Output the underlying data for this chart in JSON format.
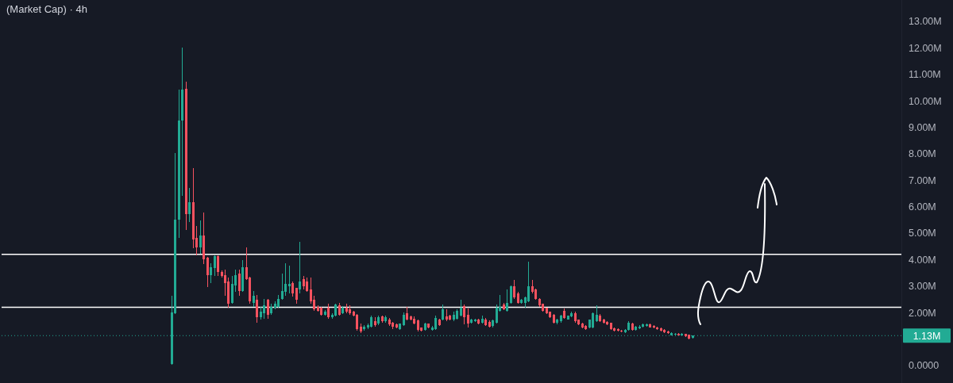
{
  "chart_data": {
    "type": "candlestick",
    "title": "(Market Cap) · 4h",
    "categories": [
      null,
      null,
      null,
      null,
      null,
      null,
      null,
      null,
      null,
      null,
      null,
      null,
      null,
      null,
      null,
      null,
      null,
      null,
      null,
      null,
      null,
      null,
      null,
      null,
      null,
      null,
      null,
      null,
      null,
      null,
      null,
      null,
      null,
      null,
      null,
      null,
      null,
      null,
      null,
      null,
      null,
      null,
      null,
      null,
      null,
      null,
      null,
      null,
      null,
      null,
      null,
      null,
      null,
      null,
      null,
      null,
      null,
      null,
      null,
      null,
      null,
      null,
      null,
      null,
      null,
      null,
      null,
      null,
      null,
      null,
      null,
      null,
      null,
      null,
      null,
      null,
      null,
      null,
      null,
      null,
      null,
      null,
      null,
      null,
      null,
      null,
      null,
      null,
      null,
      null,
      null,
      null,
      null,
      null,
      null,
      null,
      null,
      null,
      null,
      null,
      null,
      null,
      null,
      null,
      null,
      null,
      null,
      null,
      null,
      null,
      null,
      null,
      null,
      null,
      null,
      null,
      null,
      null,
      null,
      null,
      null,
      null,
      null,
      null,
      null,
      null,
      null,
      null,
      null,
      null,
      null,
      null,
      null,
      null,
      null,
      null,
      null,
      null,
      null,
      null,
      null,
      null,
      null,
      null,
      null,
      null,
      null,
      null,
      null,
      null,
      null,
      null,
      null,
      null,
      null,
      null,
      null,
      null,
      null,
      null,
      null,
      null,
      null,
      null,
      null,
      null,
      null,
      null,
      null,
      null,
      null,
      null,
      null,
      null,
      null,
      null,
      null,
      null,
      null,
      null,
      null,
      null,
      null,
      null,
      null,
      null,
      null,
      null,
      null,
      null,
      null,
      null,
      null,
      null,
      null,
      null,
      null,
      null,
      null,
      null,
      null,
      null,
      null,
      null,
      null,
      null,
      null,
      null,
      null,
      null,
      null,
      null,
      null,
      null,
      null,
      null,
      null,
      null,
      null,
      null,
      null,
      null,
      null,
      null,
      null,
      null,
      null,
      null,
      null,
      null,
      null,
      null,
      null,
      null,
      null,
      null,
      null,
      null,
      null,
      null,
      null,
      null,
      null,
      null,
      null,
      null,
      null,
      null,
      null,
      null,
      null,
      null
    ],
    "ohlc": [
      null,
      null,
      null,
      null,
      null,
      null,
      null,
      null,
      null,
      null,
      null,
      null,
      null,
      null,
      null,
      null,
      null,
      null,
      null,
      null,
      null,
      null,
      null,
      null,
      null,
      null,
      null,
      null,
      null,
      null,
      null,
      null,
      null,
      null,
      null,
      null,
      null,
      null,
      null,
      null,
      null,
      null,
      null,
      null,
      null,
      null,
      null,
      [
        0.05,
        2.64,
        0.02,
        2.0
      ],
      [
        1.98,
        8.03,
        1.95,
        5.52
      ],
      [
        5.52,
        10.43,
        4.82,
        9.27
      ],
      [
        9.27,
        12.0,
        6.4,
        10.43
      ],
      [
        10.45,
        10.72,
        5.12,
        5.72
      ],
      [
        5.72,
        6.72,
        5.42,
        6.17
      ],
      [
        6.17,
        7.47,
        4.43,
        4.77
      ],
      [
        4.82,
        5.27,
        4.17,
        4.47
      ],
      [
        4.47,
        5.48,
        4.22,
        4.92
      ],
      [
        4.92,
        5.78,
        3.83,
        4.02
      ],
      [
        4.07,
        4.1,
        2.97,
        3.42
      ],
      [
        3.42,
        3.87,
        3.12,
        3.72
      ],
      [
        3.68,
        4.15,
        3.38,
        4.12
      ],
      [
        4.12,
        4.15,
        3.38,
        3.53
      ],
      [
        3.53,
        3.6,
        3.33,
        3.38
      ],
      [
        3.42,
        3.62,
        2.64,
        3.12
      ],
      [
        3.18,
        3.33,
        2.18,
        2.33
      ],
      [
        2.38,
        3.38,
        2.33,
        3.08
      ],
      [
        3.03,
        3.62,
        2.78,
        3.42
      ],
      [
        3.48,
        3.62,
        2.64,
        2.83
      ],
      [
        2.83,
        3.98,
        2.78,
        3.72
      ],
      [
        3.72,
        4.47,
        3.23,
        3.27
      ],
      [
        3.33,
        3.35,
        2.33,
        2.43
      ],
      [
        2.38,
        2.83,
        2.23,
        2.63
      ],
      [
        2.48,
        2.68,
        1.63,
        1.83
      ],
      [
        1.83,
        2.23,
        1.73,
        2.03
      ],
      [
        1.98,
        2.53,
        1.78,
        2.28
      ],
      [
        2.48,
        2.53,
        1.78,
        1.93
      ],
      [
        1.98,
        2.33,
        1.93,
        2.23
      ],
      [
        2.18,
        2.43,
        2.13,
        2.33
      ],
      [
        2.23,
        2.68,
        2.2,
        2.53
      ],
      [
        2.53,
        3.48,
        2.5,
        2.83
      ],
      [
        2.78,
        3.87,
        2.63,
        3.08
      ],
      [
        3.0,
        3.78,
        2.73,
        3.08
      ],
      [
        3.12,
        3.17,
        2.6,
        2.73
      ],
      [
        2.93,
        2.95,
        2.33,
        2.48
      ],
      [
        2.88,
        4.67,
        2.73,
        3.18
      ],
      [
        3.27,
        3.37,
        2.88,
        2.98
      ],
      [
        3.18,
        3.33,
        2.78,
        2.83
      ],
      [
        2.88,
        3.33,
        2.33,
        2.43
      ],
      [
        2.48,
        2.63,
        2.08,
        2.13
      ],
      [
        2.23,
        2.28,
        2.03,
        2.08
      ],
      [
        2.18,
        2.23,
        1.88,
        1.93
      ],
      [
        1.93,
        2.1,
        1.9,
        2.05
      ],
      [
        2.18,
        2.33,
        1.78,
        1.83
      ],
      [
        1.83,
        1.98,
        1.78,
        1.93
      ],
      [
        1.88,
        2.35,
        1.85,
        2.3
      ],
      [
        2.28,
        2.38,
        1.9,
        1.93
      ],
      [
        1.98,
        2.25,
        1.95,
        2.2
      ],
      [
        2.2,
        2.35,
        1.98,
        2.03
      ],
      [
        2.13,
        2.28,
        1.93,
        1.98
      ],
      [
        2.03,
        2.08,
        1.85,
        1.88
      ],
      [
        1.93,
        1.95,
        1.33,
        1.38
      ],
      [
        1.48,
        1.58,
        1.23,
        1.28
      ],
      [
        1.38,
        1.53,
        1.33,
        1.48
      ],
      [
        1.43,
        1.58,
        1.38,
        1.53
      ],
      [
        1.48,
        1.9,
        1.43,
        1.83
      ],
      [
        1.68,
        1.83,
        1.48,
        1.53
      ],
      [
        1.58,
        1.88,
        1.53,
        1.83
      ],
      [
        1.85,
        1.88,
        1.63,
        1.68
      ],
      [
        1.68,
        1.88,
        1.63,
        1.83
      ],
      [
        1.75,
        1.8,
        1.5,
        1.55
      ],
      [
        1.63,
        1.65,
        1.38,
        1.48
      ],
      [
        1.55,
        1.6,
        1.4,
        1.43
      ],
      [
        1.38,
        1.6,
        1.35,
        1.58
      ],
      [
        1.53,
        2.0,
        1.5,
        1.93
      ],
      [
        1.98,
        2.23,
        1.7,
        1.73
      ],
      [
        1.85,
        1.9,
        1.7,
        1.73
      ],
      [
        1.78,
        1.85,
        1.55,
        1.58
      ],
      [
        1.71,
        1.75,
        1.3,
        1.35
      ],
      [
        1.43,
        1.45,
        1.3,
        1.33
      ],
      [
        1.35,
        1.63,
        1.33,
        1.58
      ],
      [
        1.58,
        1.6,
        1.4,
        1.43
      ],
      [
        1.35,
        1.5,
        1.33,
        1.45
      ],
      [
        1.38,
        1.9,
        1.35,
        1.81
      ],
      [
        1.75,
        1.78,
        1.5,
        1.53
      ],
      [
        1.73,
        2.31,
        1.7,
        2.13
      ],
      [
        1.85,
        2.13,
        1.68,
        1.73
      ],
      [
        1.88,
        1.93,
        1.7,
        1.73
      ],
      [
        1.73,
        2.03,
        1.68,
        1.93
      ],
      [
        1.78,
        2.13,
        1.75,
        2.08
      ],
      [
        1.88,
        2.48,
        1.85,
        2.18
      ],
      [
        2.25,
        2.3,
        1.55,
        1.83
      ],
      [
        1.91,
        2.15,
        1.43,
        1.58
      ],
      [
        1.63,
        1.78,
        1.6,
        1.73
      ],
      [
        1.68,
        1.78,
        1.65,
        1.75
      ],
      [
        1.75,
        1.78,
        1.55,
        1.6
      ],
      [
        1.63,
        1.88,
        1.6,
        1.78
      ],
      [
        1.75,
        1.8,
        1.5,
        1.53
      ],
      [
        1.65,
        1.7,
        1.45,
        1.48
      ],
      [
        1.5,
        1.75,
        1.45,
        1.7
      ],
      [
        1.63,
        2.3,
        1.6,
        2.18
      ],
      [
        2.08,
        2.68,
        2.03,
        2.23
      ],
      [
        2.3,
        2.38,
        2.1,
        2.13
      ],
      [
        2.08,
        2.88,
        2.03,
        2.38
      ],
      [
        2.38,
        3.03,
        2.33,
        2.98
      ],
      [
        2.98,
        3.23,
        2.53,
        2.58
      ],
      [
        2.73,
        2.78,
        2.33,
        2.38
      ],
      [
        2.38,
        2.53,
        2.33,
        2.48
      ],
      [
        2.38,
        2.6,
        2.18,
        2.58
      ],
      [
        2.43,
        3.92,
        2.4,
        3.0
      ],
      [
        3.0,
        3.23,
        2.73,
        2.78
      ],
      [
        2.88,
        2.9,
        2.48,
        2.53
      ],
      [
        2.53,
        2.55,
        2.23,
        2.28
      ],
      [
        2.33,
        2.35,
        2.03,
        2.08
      ],
      [
        2.18,
        2.2,
        1.95,
        1.98
      ],
      [
        2.03,
        2.05,
        1.8,
        1.83
      ],
      [
        1.91,
        1.95,
        1.6,
        1.63
      ],
      [
        1.63,
        1.78,
        1.55,
        1.73
      ],
      [
        1.68,
        1.93,
        1.63,
        1.88
      ],
      [
        2.08,
        2.15,
        1.78,
        1.81
      ],
      [
        1.75,
        1.9,
        1.73,
        1.88
      ],
      [
        1.85,
        2.05,
        1.83,
        1.98
      ],
      [
        1.98,
        2.03,
        1.63,
        1.68
      ],
      [
        1.73,
        1.75,
        1.53,
        1.55
      ],
      [
        1.6,
        1.63,
        1.42,
        1.45
      ],
      [
        1.5,
        1.53,
        1.35,
        1.38
      ],
      [
        1.43,
        1.75,
        1.4,
        1.73
      ],
      [
        1.45,
        2.0,
        1.4,
        1.98
      ],
      [
        1.68,
        2.28,
        1.65,
        1.93
      ],
      [
        1.9,
        1.95,
        1.65,
        1.68
      ],
      [
        1.75,
        1.78,
        1.6,
        1.63
      ],
      [
        1.65,
        1.68,
        1.53,
        1.55
      ],
      [
        1.61,
        1.63,
        1.35,
        1.38
      ],
      [
        1.41,
        1.43,
        1.28,
        1.31
      ],
      [
        1.38,
        1.4,
        1.28,
        1.31
      ],
      [
        1.33,
        1.35,
        1.25,
        1.28
      ],
      [
        1.25,
        1.38,
        1.23,
        1.36
      ],
      [
        1.35,
        1.68,
        1.33,
        1.63
      ],
      [
        1.6,
        1.63,
        1.33,
        1.35
      ],
      [
        1.35,
        1.5,
        1.33,
        1.48
      ],
      [
        1.4,
        1.53,
        1.38,
        1.48
      ],
      [
        1.48,
        1.6,
        1.45,
        1.55
      ],
      [
        1.5,
        1.58,
        1.48,
        1.55
      ],
      [
        1.55,
        1.58,
        1.43,
        1.45
      ],
      [
        1.5,
        1.53,
        1.4,
        1.43
      ],
      [
        1.45,
        1.48,
        1.35,
        1.38
      ],
      [
        1.41,
        1.43,
        1.3,
        1.33
      ],
      [
        1.36,
        1.38,
        1.23,
        1.26
      ],
      [
        1.3,
        1.31,
        1.2,
        1.23
      ],
      [
        1.15,
        1.25,
        1.13,
        1.23
      ],
      [
        1.16,
        1.23,
        1.13,
        1.2
      ],
      [
        1.21,
        1.23,
        1.13,
        1.15
      ],
      [
        1.15,
        1.23,
        1.13,
        1.21
      ],
      [
        1.2,
        1.21,
        1.08,
        1.1
      ],
      [
        1.16,
        1.18,
        0.98,
        1.03
      ],
      [
        1.05,
        1.15,
        1.03,
        1.13
      ],
      null,
      null,
      null,
      null,
      null,
      null,
      null,
      null,
      null,
      null,
      null,
      null,
      null,
      null,
      null,
      null,
      null,
      null,
      null,
      null,
      null,
      null,
      null,
      null,
      null,
      null,
      null,
      null,
      null,
      null,
      null,
      null,
      null,
      null,
      null,
      null,
      null,
      null,
      null,
      null,
      null,
      null,
      null,
      null,
      null,
      null,
      null,
      null,
      null,
      null,
      null,
      null,
      null,
      null,
      null,
      null,
      null,
      null
    ],
    "colors": [
      null,
      null,
      null,
      null,
      null,
      null,
      null,
      null,
      null,
      null,
      null,
      null,
      null,
      null,
      null,
      null,
      null,
      null,
      null,
      null,
      null,
      null,
      null,
      null,
      null,
      null,
      null,
      null,
      null,
      null,
      null,
      null,
      null,
      null,
      null,
      null,
      null,
      null,
      null,
      null,
      null,
      null,
      null,
      null,
      null,
      null,
      null,
      "#22ab94",
      "#22ab94",
      "#22ab94",
      "#22ab94",
      "#f7525f",
      "#22ab94",
      "#f7525f",
      "#f7525f",
      "#22ab94",
      "#f7525f",
      "#f7525f",
      "#22ab94",
      "#22ab94",
      "#f7525f",
      "#f7525f",
      "#f7525f",
      "#f7525f",
      "#22ab94",
      "#22ab94",
      "#f7525f",
      "#22ab94",
      "#f7525f",
      "#f7525f",
      "#22ab94",
      "#f7525f",
      "#22ab94",
      "#22ab94",
      "#f7525f",
      "#22ab94",
      "#22ab94",
      "#22ab94",
      "#22ab94",
      "#22ab94",
      "#22ab94",
      "#f7525f",
      "#f7525f",
      "#22ab94",
      "#f7525f",
      "#f7525f",
      "#f7525f",
      "#f7525f",
      "#f7525f",
      "#f7525f",
      "#22ab94",
      "#f7525f",
      "#22ab94",
      "#22ab94",
      "#f7525f",
      "#22ab94",
      "#f7525f",
      "#f7525f",
      "#f7525f",
      "#f7525f",
      "#f7525f",
      "#22ab94",
      "#22ab94",
      "#22ab94",
      "#f7525f",
      "#22ab94",
      "#f7525f",
      "#22ab94",
      "#f7525f",
      "#f7525f",
      "#f7525f",
      "#22ab94",
      "#22ab94",
      "#f7525f",
      "#f7525f",
      "#f7525f",
      "#f7525f",
      "#f7525f",
      "#22ab94",
      "#f7525f",
      "#22ab94",
      "#22ab94",
      "#f7525f",
      "#22ab94",
      "#f7525f",
      "#f7525f",
      "#22ab94",
      "#22ab94",
      "#22ab94",
      "#f7525f",
      "#f7525f",
      "#22ab94",
      "#22ab94",
      "#f7525f",
      "#22ab94",
      "#f7525f",
      "#f7525f",
      "#22ab94",
      "#22ab94",
      "#22ab94",
      "#f7525f",
      "#22ab94",
      "#22ab94",
      "#f7525f",
      "#f7525f",
      "#22ab94",
      "#22ab94",
      "#22ab94",
      "#f7525f",
      "#f7525f",
      "#f7525f",
      "#f7525f",
      "#f7525f",
      "#f7525f",
      "#f7525f",
      "#22ab94",
      "#22ab94",
      "#f7525f",
      "#22ab94",
      "#22ab94",
      "#f7525f",
      "#f7525f",
      "#f7525f",
      "#f7525f",
      "#22ab94",
      "#22ab94",
      "#22ab94",
      "#f7525f",
      "#f7525f",
      "#f7525f",
      "#f7525f",
      "#f7525f",
      "#f7525f",
      "#f7525f",
      "#22ab94",
      "#22ab94",
      "#f7525f",
      "#22ab94",
      "#22ab94",
      "#22ab94",
      "#22ab94",
      "#f7525f",
      "#f7525f",
      "#f7525f",
      "#f7525f",
      "#f7525f",
      "#f7525f",
      "#22ab94",
      "#22ab94",
      "#f7525f",
      "#22ab94",
      "#f7525f",
      "#f7525f",
      "#22ab94",
      null,
      null,
      null,
      null,
      null,
      null,
      null,
      null,
      null,
      null,
      null,
      null,
      null,
      null,
      null,
      null,
      null,
      null,
      null,
      null,
      null,
      null,
      null,
      null,
      null,
      null,
      null,
      null,
      null,
      null,
      null,
      null,
      null,
      null,
      null,
      null,
      null,
      null,
      null,
      null,
      null,
      null,
      null,
      null,
      null,
      null,
      null,
      null,
      null,
      null,
      null,
      null,
      null,
      null,
      null,
      null,
      null,
      null
    ],
    "ylim": [
      -0.66,
      13.81
    ],
    "yticks": [
      {
        "value": 0,
        "label": "0.0000"
      },
      {
        "value": 2,
        "label": "2.00M"
      },
      {
        "value": 3,
        "label": "3.00M"
      },
      {
        "value": 4,
        "label": "4.00M"
      },
      {
        "value": 5,
        "label": "5.00M"
      },
      {
        "value": 6,
        "label": "6.00M"
      },
      {
        "value": 7,
        "label": "7.00M"
      },
      {
        "value": 8,
        "label": "8.00M"
      },
      {
        "value": 9,
        "label": "9.00M"
      },
      {
        "value": 10,
        "label": "10.00M"
      },
      {
        "value": 11,
        "label": "11.00M"
      },
      {
        "value": 12,
        "label": "12.00M"
      },
      {
        "value": 13,
        "label": "13.00M"
      }
    ],
    "tick_labels": "y",
    "ref_lines": [
      {
        "axis": "y",
        "value": 4.2,
        "color": "#ffffff"
      },
      {
        "axis": "y",
        "value": 2.2,
        "color": "#ffffff"
      },
      {
        "axis": "y",
        "value": 1.13,
        "label": "1.13M",
        "color": "#22ab94",
        "line_style": "dotted"
      }
    ]
  }
}
